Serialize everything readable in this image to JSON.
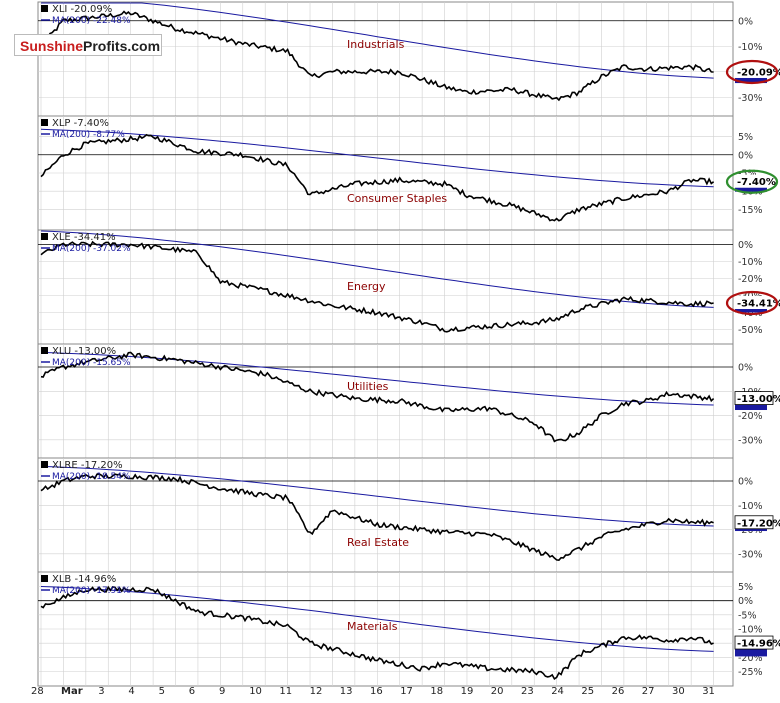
{
  "logo": {
    "part1": "Sunshine",
    "part2": "Profits.com"
  },
  "x_tick_labels": [
    "28",
    "Mar",
    "3",
    "4",
    "5",
    "6",
    "9",
    "10",
    "11",
    "12",
    "13",
    "16",
    "17",
    "18",
    "19",
    "20",
    "23",
    "24",
    "25",
    "26",
    "27",
    "30",
    "31"
  ],
  "colors": {
    "price": "#000000",
    "ma": "#1a1aa0",
    "grid": "#d0d0d0",
    "zero": "#000000",
    "badge_red": "#b01010",
    "badge_green": "#2f8f2f",
    "ma_badge": "#1a1aa0"
  },
  "chart_data": [
    {
      "type": "line",
      "symbol_label": "XLI -20.09%",
      "ma_label": "MA(200) -22.48%",
      "sector": "Industrials",
      "yticks": [
        "0%",
        "-10%",
        "-20%",
        "-30%"
      ],
      "ylim": [
        -35,
        5
      ],
      "tickvals": [
        0,
        -10,
        -20,
        -30
      ],
      "last_label": "-20.09%",
      "badge_style": "red",
      "ma_start": 10,
      "ma_end": -22.48,
      "anchors": [
        [
          0,
          -10
        ],
        [
          1,
          0
        ],
        [
          4,
          3
        ],
        [
          6,
          -3
        ],
        [
          9,
          -9
        ],
        [
          11,
          -12
        ],
        [
          12,
          -22
        ],
        [
          13,
          -20
        ],
        [
          16,
          -20
        ],
        [
          18,
          -26
        ],
        [
          19,
          -28
        ],
        [
          21,
          -27
        ],
        [
          23,
          -31
        ],
        [
          24,
          -28
        ],
        [
          25,
          -22
        ],
        [
          26,
          -18
        ],
        [
          27,
          -19
        ],
        [
          29,
          -18
        ],
        [
          30,
          -20.09
        ]
      ]
    },
    {
      "type": "line",
      "symbol_label": "XLP -7.40%",
      "ma_label": "MA(200) -8.77%",
      "sector": "Consumer Staples",
      "yticks": [
        "5%",
        "0%",
        "-5%",
        "-10%",
        "-15%"
      ],
      "ylim": [
        -19,
        9
      ],
      "tickvals": [
        5,
        0,
        -5,
        -10,
        -15
      ],
      "last_label": "-7.40%",
      "badge_style": "green",
      "ma_start": 7,
      "ma_end": -8.77,
      "anchors": [
        [
          0,
          -6
        ],
        [
          1,
          0
        ],
        [
          2,
          3
        ],
        [
          5,
          5
        ],
        [
          7,
          1
        ],
        [
          9,
          0
        ],
        [
          11,
          -3
        ],
        [
          12,
          -11
        ],
        [
          14,
          -8
        ],
        [
          16,
          -7
        ],
        [
          18,
          -8
        ],
        [
          19,
          -11
        ],
        [
          21,
          -14
        ],
        [
          23,
          -18
        ],
        [
          24,
          -15
        ],
        [
          26,
          -12
        ],
        [
          27,
          -11
        ],
        [
          28,
          -10
        ],
        [
          29,
          -7
        ],
        [
          30,
          -7.4
        ]
      ]
    },
    {
      "type": "line",
      "symbol_label": "XLE -34.41%",
      "ma_label": "MA(200) -37.02%",
      "sector": "Energy",
      "yticks": [
        "0%",
        "-10%",
        "-20%",
        "-30%",
        "-40%",
        "-50%"
      ],
      "ylim": [
        -55,
        5
      ],
      "tickvals": [
        0,
        -10,
        -20,
        -30,
        -40,
        -50
      ],
      "last_label": "-34.41%",
      "badge_style": "red",
      "ma_start": 8,
      "ma_end": -37.02,
      "anchors": [
        [
          0,
          -6
        ],
        [
          1,
          0
        ],
        [
          4,
          0
        ],
        [
          6,
          -3
        ],
        [
          7,
          -5
        ],
        [
          8,
          -22
        ],
        [
          10,
          -27
        ],
        [
          12,
          -33
        ],
        [
          13,
          -36
        ],
        [
          15,
          -40
        ],
        [
          17,
          -46
        ],
        [
          18,
          -50
        ],
        [
          20,
          -48
        ],
        [
          22,
          -46
        ],
        [
          23,
          -44
        ],
        [
          24,
          -38
        ],
        [
          26,
          -32
        ],
        [
          28,
          -34
        ],
        [
          29,
          -35
        ],
        [
          30,
          -34.41
        ]
      ]
    },
    {
      "type": "line",
      "symbol_label": "XLU -13.00%",
      "ma_label": "MA(200) -15.65%",
      "sector": "Utilities",
      "yticks": [
        "0%",
        "-10%",
        "-20%",
        "-30%"
      ],
      "ylim": [
        -35,
        7
      ],
      "tickvals": [
        0,
        -10,
        -20,
        -30
      ],
      "last_label": "-13.00%",
      "badge_style": "blue",
      "ma_start": 6,
      "ma_end": -15.65,
      "anchors": [
        [
          0,
          -4
        ],
        [
          1,
          0
        ],
        [
          2,
          2
        ],
        [
          4,
          5
        ],
        [
          6,
          3
        ],
        [
          8,
          0
        ],
        [
          10,
          -3
        ],
        [
          12,
          -10
        ],
        [
          14,
          -13
        ],
        [
          16,
          -14
        ],
        [
          18,
          -18
        ],
        [
          20,
          -17
        ],
        [
          22,
          -23
        ],
        [
          23,
          -31
        ],
        [
          24,
          -27
        ],
        [
          25,
          -20
        ],
        [
          26,
          -15
        ],
        [
          27,
          -14
        ],
        [
          28,
          -11
        ],
        [
          29,
          -12
        ],
        [
          30,
          -13.0
        ]
      ]
    },
    {
      "type": "line",
      "symbol_label": "XLRE -17.20%",
      "ma_label": "MA(200) -18.54%",
      "sector": "Real Estate",
      "yticks": [
        "0%",
        "-10%",
        "-20%",
        "-30%"
      ],
      "ylim": [
        -35,
        7
      ],
      "tickvals": [
        0,
        -10,
        -20,
        -30
      ],
      "last_label": "-17.20%",
      "badge_style": "blue",
      "ma_start": 6,
      "ma_end": -18.54,
      "anchors": [
        [
          0,
          -4
        ],
        [
          1,
          0
        ],
        [
          2,
          2
        ],
        [
          4,
          2
        ],
        [
          6,
          1
        ],
        [
          8,
          -3
        ],
        [
          10,
          -6
        ],
        [
          11,
          -7
        ],
        [
          12,
          -22
        ],
        [
          13,
          -12
        ],
        [
          15,
          -18
        ],
        [
          17,
          -20
        ],
        [
          18,
          -21
        ],
        [
          20,
          -22
        ],
        [
          21,
          -25
        ],
        [
          23,
          -32
        ],
        [
          24,
          -28
        ],
        [
          25,
          -23
        ],
        [
          26,
          -20
        ],
        [
          28,
          -16
        ],
        [
          29,
          -17
        ],
        [
          30,
          -17.2
        ]
      ]
    },
    {
      "type": "line",
      "symbol_label": "XLB -14.96%",
      "ma_label": "MA(200) -17.91%",
      "sector": "Materials",
      "yticks": [
        "5%",
        "0%",
        "-5%",
        "-10%",
        "-15%",
        "-20%",
        "-25%"
      ],
      "ylim": [
        -28,
        8
      ],
      "tickvals": [
        5,
        0,
        -5,
        -10,
        -15,
        -20,
        -25
      ],
      "last_label": "-14.96%",
      "badge_style": "blue",
      "ma_start": 5,
      "ma_end": -17.91,
      "anchors": [
        [
          0,
          -2
        ],
        [
          1,
          1
        ],
        [
          2,
          4
        ],
        [
          3,
          4
        ],
        [
          5,
          4
        ],
        [
          7,
          -4
        ],
        [
          9,
          -6
        ],
        [
          11,
          -9
        ],
        [
          12,
          -15
        ],
        [
          13,
          -17
        ],
        [
          15,
          -21
        ],
        [
          17,
          -24
        ],
        [
          18,
          -22
        ],
        [
          20,
          -24
        ],
        [
          22,
          -25
        ],
        [
          23,
          -27
        ],
        [
          24,
          -19
        ],
        [
          25,
          -16
        ],
        [
          26,
          -13
        ],
        [
          27,
          -13
        ],
        [
          28,
          -14
        ],
        [
          29,
          -13
        ],
        [
          30,
          -14.96
        ]
      ]
    }
  ]
}
